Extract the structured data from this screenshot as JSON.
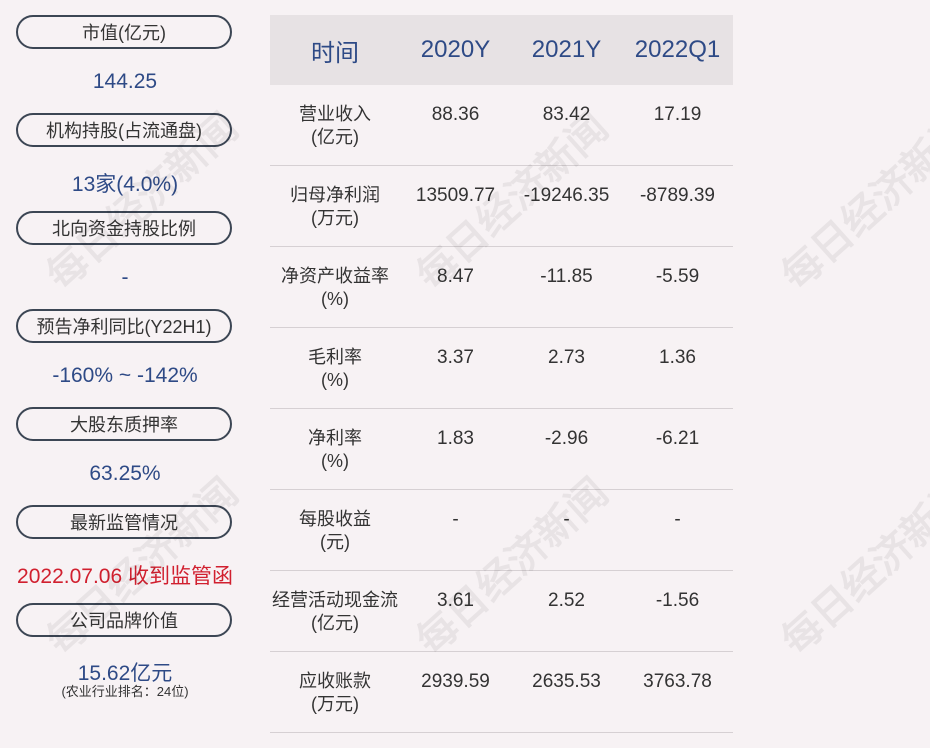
{
  "left_panel": {
    "items": [
      {
        "label": "市值(亿元)",
        "value": "144.25"
      },
      {
        "label": "机构持股(占流通盘)",
        "value": "13家(4.0%)"
      },
      {
        "label": "北向资金持股比例",
        "value": "-"
      },
      {
        "label": "预告净利同比(Y22H1)",
        "value": "-160% ~ -142%"
      },
      {
        "label": "大股东质押率",
        "value": "63.25%"
      },
      {
        "label": "最新监管情况",
        "value": "2022.07.06 收到监管函"
      },
      {
        "label": "公司品牌价值",
        "value": "15.62亿元",
        "note": "(农业行业排名：24位)"
      }
    ]
  },
  "table": {
    "headers": [
      "时间",
      "2020Y",
      "2021Y",
      "2022Q1"
    ],
    "rows": [
      {
        "label": [
          "营业收入",
          "(亿元)"
        ],
        "values": [
          "88.36",
          "83.42",
          "17.19"
        ]
      },
      {
        "label": [
          "归母净利润",
          "(万元)"
        ],
        "values": [
          "13509.77",
          "-19246.35",
          "-8789.39"
        ]
      },
      {
        "label": [
          "净资产收益率",
          "(%)"
        ],
        "values": [
          "8.47",
          "-11.85",
          "-5.59"
        ]
      },
      {
        "label": [
          "毛利率",
          "(%)"
        ],
        "values": [
          "3.37",
          "2.73",
          "1.36"
        ]
      },
      {
        "label": [
          "净利率",
          "(%)"
        ],
        "values": [
          "1.83",
          "-2.96",
          "-6.21"
        ]
      },
      {
        "label": [
          "每股收益",
          "(元)"
        ],
        "values": [
          "-",
          "-",
          "-"
        ]
      },
      {
        "label": [
          "经营活动现金流",
          "(亿元)"
        ],
        "values": [
          "3.61",
          "2.52",
          "-1.56"
        ]
      },
      {
        "label": [
          "应收账款",
          "(万元)"
        ],
        "values": [
          "2939.59",
          "2635.53",
          "3763.78"
        ]
      }
    ]
  },
  "watermark": "每日经济新闻",
  "colors": {
    "accent": "#2e4a86",
    "alert": "#d1202f",
    "background": "#f7f2f4"
  }
}
